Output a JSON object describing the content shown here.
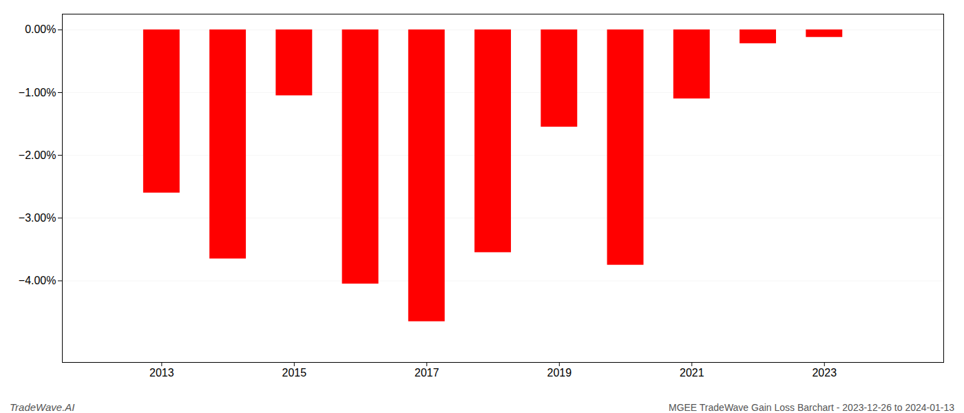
{
  "chart_data": {
    "type": "bar",
    "x": [
      2013,
      2014,
      2015,
      2016,
      2017,
      2018,
      2019,
      2020,
      2021,
      2022,
      2023
    ],
    "values": [
      -2.6,
      -3.65,
      -1.05,
      -4.05,
      -4.65,
      -3.55,
      -1.55,
      -3.75,
      -1.1,
      -0.22,
      -0.12
    ],
    "color": "#ff0000",
    "xlim": [
      2011.5,
      2024.8
    ],
    "xticks": [
      2013,
      2015,
      2017,
      2019,
      2021,
      2023
    ],
    "ylim": [
      -5.3,
      0.25
    ],
    "yticks": [
      {
        "value": 0.0,
        "label": "0.00%"
      },
      {
        "value": -1.0,
        "label": "−1.00%"
      },
      {
        "value": -2.0,
        "label": "−2.00%"
      },
      {
        "value": -3.0,
        "label": "−3.00%"
      },
      {
        "value": -4.0,
        "label": "−4.00%"
      }
    ],
    "grid": true,
    "annotations": [
      "TradeWave.AI",
      "MGEE TradeWave Gain Loss Barchart - 2023-12-26 to 2024-01-13"
    ]
  }
}
